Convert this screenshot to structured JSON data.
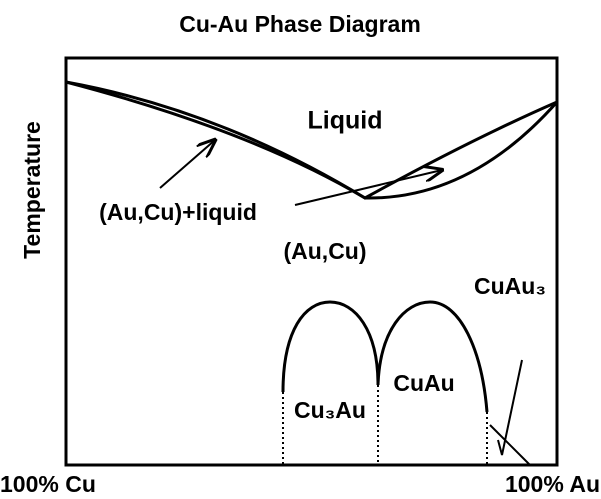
{
  "title": "Cu-Au Phase Diagram",
  "axis": {
    "y_label": "Temperature",
    "x_left": "100% Cu",
    "x_right": "100% Au"
  },
  "regions": {
    "liquid": "Liquid",
    "two_phase": "(Au,Cu)+liquid",
    "solid": "(Au,Cu)",
    "cu3au": "Cu₃Au",
    "cuau": "CuAu",
    "cuau3": "CuAu₃"
  }
}
